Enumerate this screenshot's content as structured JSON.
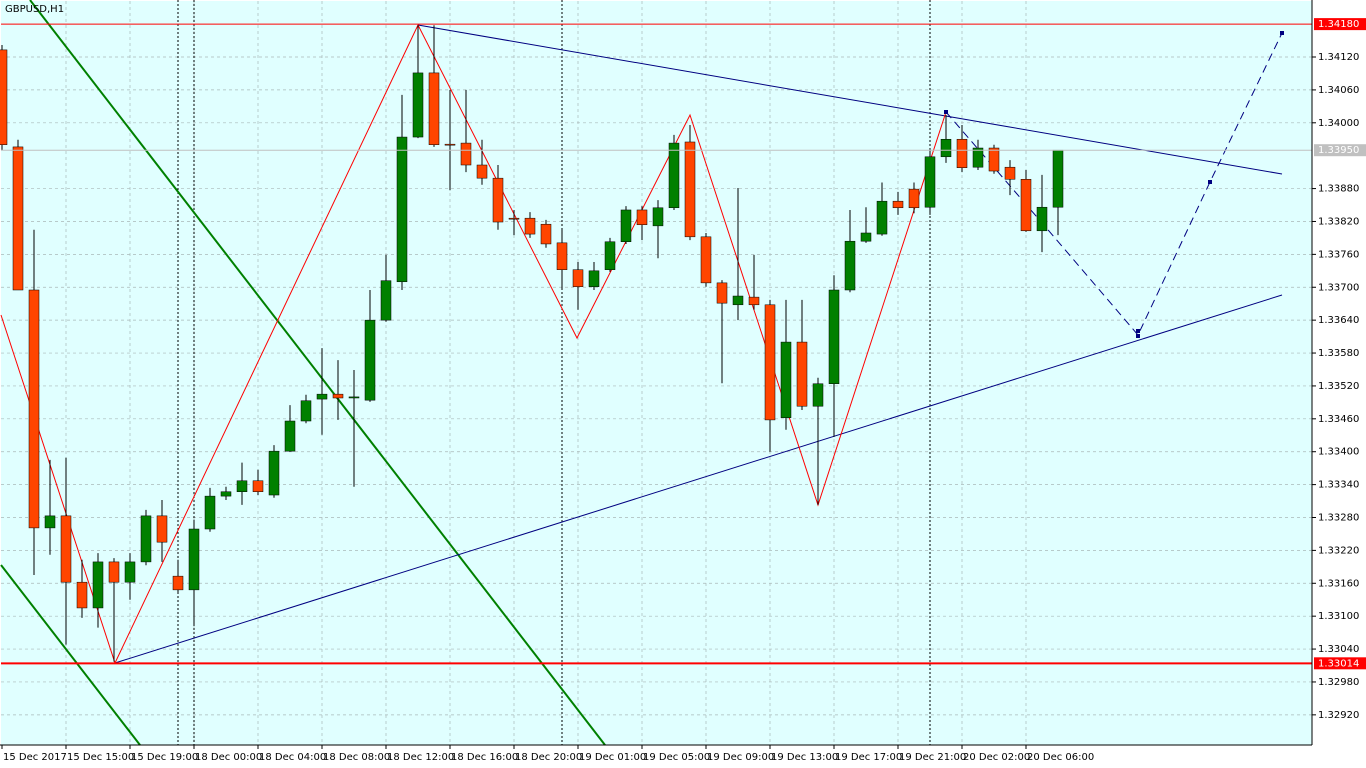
{
  "chart_data": {
    "type": "candlestick",
    "title": "GBPUSD,H1",
    "background": "#e0ffff",
    "grid": true,
    "up_color": "#008000",
    "down_color": "#ff4500",
    "ylim": [
      1.32865,
      1.34224
    ],
    "yticks": [
      {
        "value": 1.3412,
        "label": "1.34120"
      },
      {
        "value": 1.3406,
        "label": "1.34060"
      },
      {
        "value": 1.34,
        "label": "1.34000"
      },
      {
        "value": 1.3388,
        "label": "1.33880"
      },
      {
        "value": 1.3382,
        "label": "1.33820"
      },
      {
        "value": 1.3376,
        "label": "1.33760"
      },
      {
        "value": 1.337,
        "label": "1.33700"
      },
      {
        "value": 1.3364,
        "label": "1.33640"
      },
      {
        "value": 1.3358,
        "label": "1.33580"
      },
      {
        "value": 1.3352,
        "label": "1.33520"
      },
      {
        "value": 1.3346,
        "label": "1.33460"
      },
      {
        "value": 1.334,
        "label": "1.33400"
      },
      {
        "value": 1.3334,
        "label": "1.33340"
      },
      {
        "value": 1.3328,
        "label": "1.33280"
      },
      {
        "value": 1.3322,
        "label": "1.33220"
      },
      {
        "value": 1.3316,
        "label": "1.33160"
      },
      {
        "value": 1.331,
        "label": "1.33100"
      },
      {
        "value": 1.3304,
        "label": "1.33040"
      },
      {
        "value": 1.3298,
        "label": "1.32980"
      },
      {
        "value": 1.3292,
        "label": "1.32920"
      }
    ],
    "hlines": [
      {
        "value": 1.3418,
        "label": "1.34180",
        "color": "#ff0000",
        "width": 1
      },
      {
        "value": 1.3395,
        "label": "1.33950",
        "color": "#c0c0c0",
        "width": 1
      },
      {
        "value": 1.33014,
        "label": "1.33014",
        "color": "#ff0000",
        "width": 2
      }
    ],
    "categories": [
      "15 Dec 2017",
      null,
      null,
      null,
      "15 Dec 15:00",
      null,
      null,
      null,
      "15 Dec 19:00",
      null,
      null,
      null,
      "18 Dec 00:00",
      null,
      null,
      null,
      "18 Dec 04:00",
      null,
      null,
      null,
      "18 Dec 08:00",
      null,
      null,
      null,
      "18 Dec 12:00",
      null,
      null,
      null,
      "18 Dec 16:00",
      null,
      null,
      null,
      "18 Dec 20:00",
      null,
      null,
      null,
      "19 Dec 01:00",
      null,
      null,
      null,
      "19 Dec 05:00",
      null,
      null,
      null,
      "19 Dec 09:00",
      null,
      null,
      null,
      "19 Dec 13:00",
      null,
      null,
      null,
      "19 Dec 17:00",
      null,
      null,
      null,
      "19 Dec 21:00",
      null,
      null,
      null,
      "20 Dec 02:00",
      null,
      null,
      null,
      "20 Dec 06:00",
      null,
      null
    ],
    "open": [
      1.34133,
      1.33956,
      1.33695,
      1.33261,
      1.33283,
      1.33162,
      1.33115,
      1.33199,
      1.33162,
      1.33199,
      1.33283,
      1.33173,
      1.33148,
      1.33259,
      1.33319,
      1.33327,
      1.33347,
      1.33321,
      1.33401,
      1.33456,
      1.33496,
      1.33505,
      1.33498,
      1.33494,
      1.3364,
      1.3371,
      1.33974,
      1.34091,
      1.33961,
      1.33963,
      1.33923,
      1.33899,
      1.33826,
      1.33826,
      1.33815,
      1.33781,
      1.33732,
      1.33701,
      1.33732,
      1.33783,
      1.33841,
      1.33812,
      1.33845,
      1.33965,
      1.33792,
      1.33708,
      1.33668,
      1.33682,
      1.33668,
      1.33462,
      1.336,
      1.33483,
      1.33524,
      1.33695,
      1.33784,
      1.33797,
      1.33857,
      1.33879,
      1.33846,
      1.33938,
      1.3397,
      1.33919,
      1.33954,
      1.33919,
      1.33897,
      1.33803,
      1.33846
    ],
    "high": [
      1.34142,
      1.33969,
      1.33805,
      1.33385,
      1.33389,
      1.33203,
      1.33215,
      1.33206,
      1.33215,
      1.33294,
      1.33312,
      1.33203,
      1.33276,
      1.33334,
      1.33336,
      1.3338,
      1.33367,
      1.33412,
      1.33485,
      1.33504,
      1.33589,
      1.33567,
      1.33549,
      1.33695,
      1.33759,
      1.34051,
      1.34178,
      1.34178,
      1.3406,
      1.3406,
      1.33969,
      1.33923,
      1.33841,
      1.33837,
      1.33823,
      1.33805,
      1.33746,
      1.33746,
      1.3379,
      1.33848,
      1.33848,
      1.33859,
      1.33978,
      1.33996,
      1.33799,
      1.33713,
      1.33881,
      1.33759,
      1.33677,
      1.33677,
      1.33677,
      1.33535,
      1.33722,
      1.33841,
      1.33846,
      1.33891,
      1.33874,
      1.33891,
      1.3395,
      1.34014,
      1.33996,
      1.33969,
      1.3396,
      1.33932,
      1.33914,
      1.33905,
      1.3395
    ],
    "low": [
      1.3395,
      1.33695,
      1.33175,
      1.33212,
      1.33048,
      1.33097,
      1.33079,
      1.33017,
      1.3313,
      1.33193,
      1.33199,
      1.33144,
      1.33084,
      1.33254,
      1.33312,
      1.33303,
      1.33321,
      1.33316,
      1.334,
      1.33452,
      1.33431,
      1.33458,
      1.33336,
      1.33491,
      1.33637,
      1.33695,
      1.33972,
      1.33956,
      1.33877,
      1.3391,
      1.33887,
      1.33805,
      1.33795,
      1.3379,
      1.33772,
      1.33695,
      1.33659,
      1.33695,
      1.33728,
      1.33779,
      1.33786,
      1.33753,
      1.33841,
      1.33786,
      1.33701,
      1.33525,
      1.3364,
      1.33659,
      1.334,
      1.3344,
      1.33476,
      1.33303,
      1.33427,
      1.33691,
      1.33781,
      1.33794,
      1.33832,
      1.33835,
      1.33832,
      1.33927,
      1.3391,
      1.33914,
      1.33907,
      1.33868,
      1.33801,
      1.33764,
      1.33795
    ],
    "close": [
      1.3396,
      1.33695,
      1.33261,
      1.33283,
      1.33162,
      1.33115,
      1.33199,
      1.33162,
      1.33199,
      1.33283,
      1.33235,
      1.33148,
      1.33259,
      1.33319,
      1.33327,
      1.33347,
      1.33327,
      1.33401,
      1.33456,
      1.33493,
      1.33505,
      1.33498,
      1.335,
      1.3364,
      1.33712,
      1.33974,
      1.34091,
      1.3396,
      1.3396,
      1.33923,
      1.33899,
      1.33819,
      1.33825,
      1.33797,
      1.33779,
      1.33732,
      1.33701,
      1.3373,
      1.33783,
      1.33841,
      1.33814,
      1.33845,
      1.33963,
      1.33792,
      1.33708,
      1.33671,
      1.33684,
      1.33668,
      1.33458,
      1.336,
      1.33483,
      1.33524,
      1.33695,
      1.33784,
      1.33799,
      1.33857,
      1.33845,
      1.33845,
      1.33938,
      1.3397,
      1.33918,
      1.33954,
      1.33912,
      1.33897,
      1.33803,
      1.33846,
      1.3395
    ]
  }
}
